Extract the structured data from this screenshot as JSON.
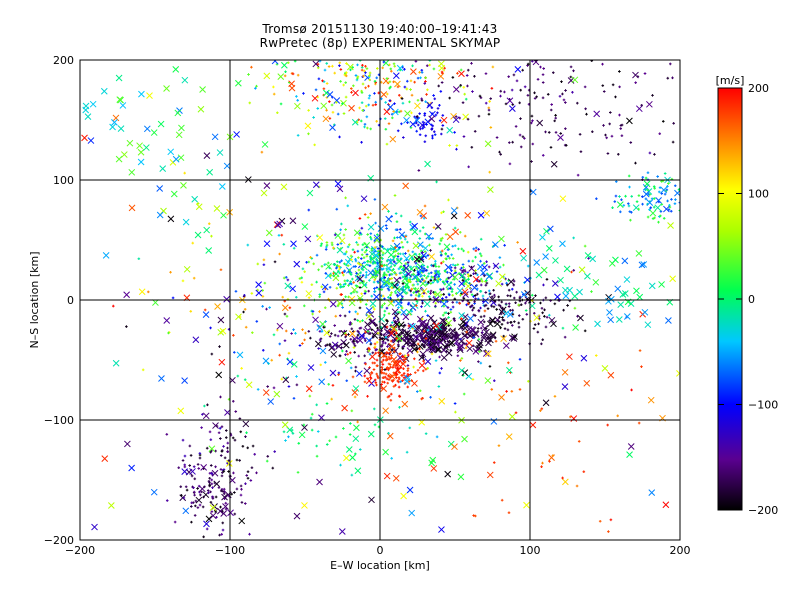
{
  "chart_data": {
    "type": "scatter",
    "title": "Tromsø 20151130 19:40:00–19:41:43",
    "subtitle": "RwPretec (8p) EXPERIMENTAL SKYMAP",
    "xlabel": "E–W location [km]",
    "ylabel": "N–S location [km]",
    "xlim": [
      -200,
      200
    ],
    "ylim": [
      -200,
      200
    ],
    "xticks": [
      -200,
      -100,
      0,
      100,
      200
    ],
    "yticks": [
      -200,
      -100,
      0,
      100,
      200
    ],
    "grid": true,
    "colorbar": {
      "label": "[m/s]",
      "range": [
        -200,
        200
      ],
      "ticks": [
        200,
        100,
        0,
        -100,
        -200
      ],
      "colormap": "rainbow (black-purple-blue-cyan-green-yellow-orange-red)",
      "placement": "right"
    },
    "markers": {
      "plus": "small point echoes",
      "x": "cross markers"
    },
    "clusters": [
      {
        "center": [
          5,
          25
        ],
        "spread": [
          22,
          18
        ],
        "n": 520,
        "vmin": -90,
        "vmax": 60,
        "marker": "plus"
      },
      {
        "center": [
          45,
          15
        ],
        "spread": [
          22,
          12
        ],
        "n": 240,
        "vmin": -200,
        "vmax": 70,
        "marker": "plus"
      },
      {
        "center": [
          15,
          -32
        ],
        "spread": [
          28,
          8
        ],
        "n": 280,
        "vmin": -200,
        "vmax": -140,
        "marker": "plus"
      },
      {
        "center": [
          40,
          -30
        ],
        "spread": [
          20,
          8
        ],
        "n": 140,
        "vmin": -200,
        "vmax": -150,
        "marker": "x"
      },
      {
        "center": [
          8,
          -55
        ],
        "spread": [
          10,
          12
        ],
        "n": 170,
        "vmin": 170,
        "vmax": 200,
        "marker": "plus"
      },
      {
        "center": [
          85,
          -10
        ],
        "spread": [
          20,
          10
        ],
        "n": 130,
        "vmin": -200,
        "vmax": -160,
        "marker": "plus"
      },
      {
        "center": [
          -12,
          180
        ],
        "spread": [
          35,
          20
        ],
        "n": 300,
        "vmin": -110,
        "vmax": 200,
        "marker": "plus"
      },
      {
        "center": [
          32,
          148
        ],
        "spread": [
          8,
          8
        ],
        "n": 50,
        "vmin": -120,
        "vmax": -90,
        "marker": "plus"
      },
      {
        "center": [
          110,
          165
        ],
        "spread": [
          45,
          28
        ],
        "n": 200,
        "vmin": -200,
        "vmax": -140,
        "marker": "plus"
      },
      {
        "center": [
          185,
          85
        ],
        "spread": [
          14,
          10
        ],
        "n": 110,
        "vmin": -90,
        "vmax": 40,
        "marker": "plus"
      },
      {
        "center": [
          -110,
          -160
        ],
        "spread": [
          12,
          18
        ],
        "n": 130,
        "vmin": -200,
        "vmax": -140,
        "marker": "plus"
      },
      {
        "center": [
          -110,
          -120
        ],
        "spread": [
          14,
          15
        ],
        "n": 60,
        "vmin": -200,
        "vmax": -120,
        "marker": "plus"
      },
      {
        "center": [
          -10,
          -5
        ],
        "spread": [
          60,
          45
        ],
        "n": 420,
        "vmin": -200,
        "vmax": 200,
        "marker": "plus"
      },
      {
        "center": [
          0,
          0
        ],
        "spread": [
          120,
          110
        ],
        "n": 260,
        "vmin": -200,
        "vmax": 200,
        "marker": "x"
      },
      {
        "center": [
          150,
          10
        ],
        "spread": [
          35,
          20
        ],
        "n": 60,
        "vmin": -70,
        "vmax": 30,
        "marker": "x"
      },
      {
        "center": [
          -150,
          150
        ],
        "spread": [
          40,
          40
        ],
        "n": 60,
        "vmin": -70,
        "vmax": 60,
        "marker": "x"
      },
      {
        "center": [
          -30,
          -120
        ],
        "spread": [
          30,
          15
        ],
        "n": 40,
        "vmin": -50,
        "vmax": 40,
        "marker": "plus"
      },
      {
        "center": [
          120,
          -120
        ],
        "spread": [
          40,
          40
        ],
        "n": 40,
        "vmin": 140,
        "vmax": 200,
        "marker": "plus"
      }
    ]
  }
}
